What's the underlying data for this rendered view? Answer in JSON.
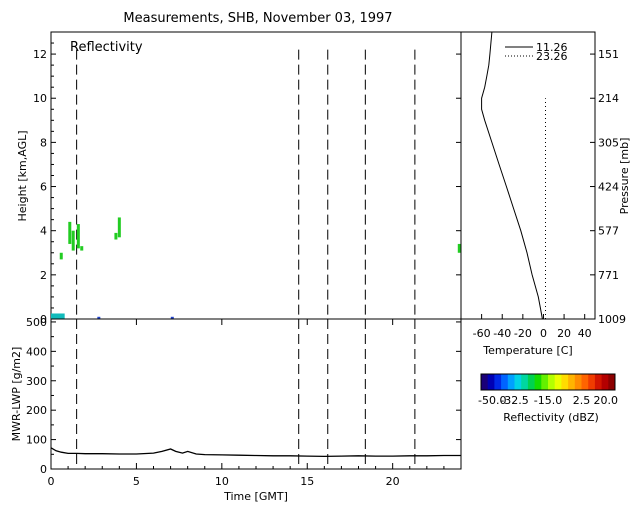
{
  "title": "Measurements, SHB, November 03, 1997",
  "colors": {
    "echo_green": "#22cc22",
    "echo_blue": "#2244cc",
    "echo_cyan": "#11bbbb"
  },
  "chart_data": [
    {
      "type": "scatter",
      "panel": "reflectivity",
      "title": "Reflectivity",
      "xlabel": "",
      "ylabel": "Height [km,AGL]",
      "xlim": [
        0,
        24
      ],
      "ylim": [
        0,
        13
      ],
      "yticks": [
        0,
        2,
        4,
        6,
        8,
        10,
        12
      ],
      "ytick_labels": [
        "0",
        "2",
        "4",
        "6",
        "8",
        "10",
        "12"
      ],
      "sounding_times": [
        1.5,
        14.5,
        16.2,
        18.4,
        21.3
      ],
      "echoes": [
        {
          "x": 0.6,
          "y0": 2.7,
          "y1": 3.0,
          "color": "echo_green"
        },
        {
          "x": 1.1,
          "y0": 3.4,
          "y1": 4.4,
          "color": "echo_green"
        },
        {
          "x": 1.3,
          "y0": 3.1,
          "y1": 4.0,
          "color": "echo_green"
        },
        {
          "x": 1.6,
          "y0": 3.2,
          "y1": 4.3,
          "color": "echo_green"
        },
        {
          "x": 1.8,
          "y0": 3.1,
          "y1": 3.3,
          "color": "echo_green"
        },
        {
          "x": 3.8,
          "y0": 3.6,
          "y1": 3.9,
          "color": "echo_green"
        },
        {
          "x": 4.0,
          "y0": 3.7,
          "y1": 4.6,
          "color": "echo_green"
        },
        {
          "x": 23.9,
          "y0": 3.0,
          "y1": 3.4,
          "color": "echo_green"
        },
        {
          "x": 0.3,
          "y0": 0.0,
          "y1": 0.2,
          "color": "echo_blue"
        },
        {
          "x": 2.8,
          "y0": 0.0,
          "y1": 0.1,
          "color": "echo_blue"
        },
        {
          "x": 7.1,
          "y0": 0.0,
          "y1": 0.1,
          "color": "echo_blue"
        }
      ]
    },
    {
      "type": "line",
      "panel": "sounding",
      "xlabel": "Temperature [C]",
      "ylabel": "Pressure [mb]",
      "xlim": [
        -80,
        50
      ],
      "xticks": [
        -60,
        -40,
        -20,
        0,
        20,
        40
      ],
      "xtick_labels": [
        "-60",
        "-40",
        "-20",
        "0",
        "20",
        "40"
      ],
      "height_ticks": [
        0,
        2,
        4,
        6,
        8,
        10,
        12
      ],
      "pressure_labels": [
        "1009",
        "771",
        "577",
        "424",
        "305",
        "214",
        "151"
      ],
      "zero_line": 0,
      "series": [
        {
          "name": "11.26",
          "style": "solid",
          "y": [
            0,
            0.5,
            1.0,
            2.0,
            3.0,
            4.0,
            5.0,
            6.0,
            7.0,
            8.0,
            9.0,
            9.5,
            10.0,
            10.5,
            11.0,
            11.5,
            12.0,
            13.0
          ],
          "x": [
            -1,
            -3,
            -5,
            -11,
            -16,
            -22,
            -29,
            -36,
            -43,
            -50,
            -57,
            -60,
            -60,
            -57,
            -55,
            -53,
            -52,
            -50
          ]
        },
        {
          "name": "23.26",
          "style": "dotted",
          "y": [
            0,
            10.0
          ],
          "x": [
            2,
            2
          ]
        }
      ]
    },
    {
      "type": "line",
      "panel": "lwp",
      "xlabel": "Time [GMT]",
      "ylabel": "MWR-LWP [g/m2]",
      "xlim": [
        0,
        24
      ],
      "ylim": [
        0,
        510
      ],
      "xticks": [
        0,
        5,
        10,
        15,
        20
      ],
      "xtick_labels": [
        "0",
        "5",
        "10",
        "15",
        "20"
      ],
      "yticks": [
        0,
        100,
        200,
        300,
        400,
        500
      ],
      "ytick_labels": [
        "0",
        "100",
        "200",
        "300",
        "400",
        "500"
      ],
      "sounding_times": [
        1.5,
        14.5,
        16.2,
        18.4,
        21.3
      ],
      "x": [
        0,
        0.3,
        0.6,
        1.0,
        1.5,
        2.0,
        3.0,
        4.0,
        5.0,
        6.0,
        6.5,
        7.0,
        7.3,
        7.7,
        8.0,
        8.5,
        9.0,
        10.0,
        11.0,
        12.0,
        13.0,
        14.0,
        15.0,
        16.0,
        17.0,
        18.0,
        19.0,
        20.0,
        21.0,
        22.0,
        23.0,
        24.0
      ],
      "y": [
        72,
        62,
        57,
        53,
        53,
        52,
        52,
        51,
        51,
        54,
        60,
        68,
        60,
        54,
        60,
        51,
        49,
        48,
        47,
        46,
        45,
        45,
        44,
        43,
        44,
        45,
        44,
        44,
        45,
        45,
        46,
        46
      ]
    },
    {
      "type": "heatmap",
      "panel": "colorbar",
      "xlabel": "Reflectivity (dBZ)",
      "range": [
        -50,
        20
      ],
      "tick_labels": [
        "-50.0",
        "-32.5",
        "-15.0",
        "2.5",
        "20.0"
      ],
      "colors": [
        "#1a0078",
        "#0000b4",
        "#0028e6",
        "#0064ff",
        "#00a0ff",
        "#00d2e6",
        "#00d7a0",
        "#00d250",
        "#14dc00",
        "#64f000",
        "#b4ff00",
        "#ebff00",
        "#ffdc00",
        "#ffb400",
        "#ff8c00",
        "#ff6400",
        "#f03c00",
        "#d21400",
        "#b40000",
        "#8c0000"
      ]
    }
  ]
}
